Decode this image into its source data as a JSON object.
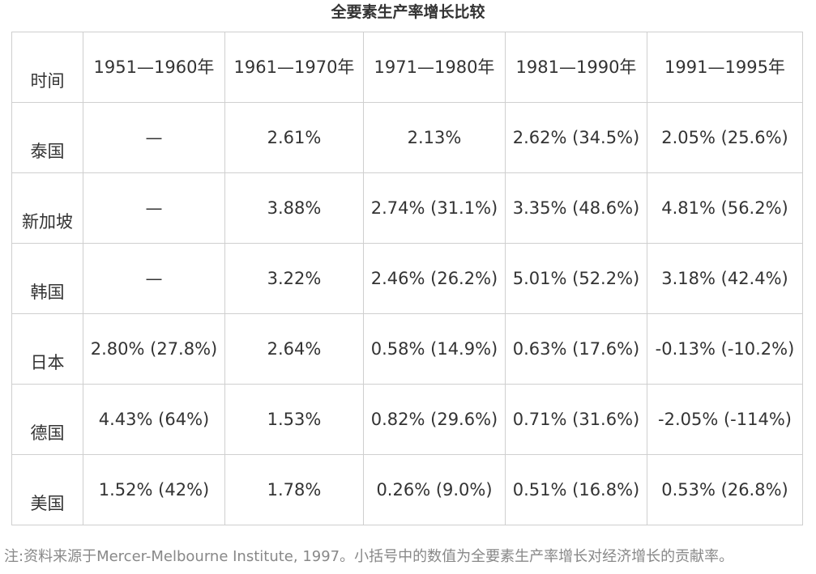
{
  "title": "全要素生产率增长比较",
  "header": {
    "row_label": "时间",
    "columns": [
      "1951—1960年",
      "1961—1970年",
      "1971—1980年",
      "1981—1990年",
      "1991—1995年"
    ]
  },
  "rows": [
    {
      "country": "泰国",
      "cells": [
        "—",
        "2.61%",
        "2.13%",
        "2.62% (34.5%)",
        "2.05% (25.6%)"
      ]
    },
    {
      "country": "新加坡",
      "cells": [
        "—",
        "3.88%",
        "2.74% (31.1%)",
        "3.35% (48.6%)",
        "4.81% (56.2%)"
      ]
    },
    {
      "country": "韩国",
      "cells": [
        "—",
        "3.22%",
        "2.46% (26.2%)",
        "5.01% (52.2%)",
        "3.18% (42.4%)"
      ]
    },
    {
      "country": "日本",
      "cells": [
        "2.80% (27.8%)",
        "2.64%",
        "0.58% (14.9%)",
        "0.63% (17.6%)",
        "-0.13% (-10.2%)"
      ]
    },
    {
      "country": "德国",
      "cells": [
        "4.43% (64%)",
        "1.53%",
        "0.82% (29.6%)",
        "0.71% (31.6%)",
        "-2.05% (-114%)"
      ]
    },
    {
      "country": "美国",
      "cells": [
        "1.52% (42%)",
        "1.78%",
        "0.26% (9.0%)",
        "0.51% (16.8%)",
        "0.53% (26.8%)"
      ]
    }
  ],
  "note": "注:资料来源于Mercer-Melbourne Institute, 1997。小括号中的数值为全要素生产率增长对经济增长的贡献率。"
}
